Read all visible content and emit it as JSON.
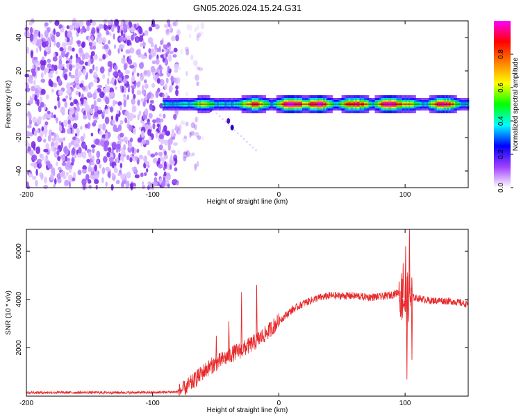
{
  "title": "GN05.2026.024.15.24.G31",
  "chart_data": [
    {
      "type": "heatmap",
      "xlabel": "Height of straight line (km)",
      "ylabel": "Frequency (Hz)",
      "xlim": [
        -200,
        150
      ],
      "ylim": [
        -50,
        50
      ],
      "xticks": [
        -200,
        -100,
        0,
        100
      ],
      "xtick_labels": [
        "-200",
        "-100",
        "0",
        "100"
      ],
      "yticks": [
        -40,
        -20,
        0,
        20,
        40
      ],
      "ytick_labels": [
        "-40",
        "-20",
        "0",
        "20",
        "40"
      ],
      "colorbar": {
        "label": "Normalized spectral amplitude",
        "range": [
          0,
          1
        ],
        "ticks": [
          0,
          0.2,
          0.4,
          0.6,
          0.8
        ],
        "tick_labels": [
          "0.0",
          "0.2",
          "0.4",
          "0.6",
          "0.8"
        ],
        "colors": [
          "#ffffff",
          "#a040ff",
          "#0000ff",
          "#00ffff",
          "#00ff00",
          "#ffff00",
          "#ff8000",
          "#ff0000",
          "#ff00ff"
        ]
      },
      "features": {
        "noise_region_x": [
          -200,
          -80
        ],
        "noise_amplitude_approx": 0.15,
        "signal_start_x": -92,
        "signal_frequency": 0,
        "signal_amplitude_peaks": [
          {
            "x": -60,
            "amp": 0.6
          },
          {
            "x": -20,
            "amp": 0.8
          },
          {
            "x": 10,
            "amp": 1.0
          },
          {
            "x": 30,
            "amp": 0.95
          },
          {
            "x": 60,
            "amp": 0.9
          },
          {
            "x": 88,
            "amp": 0.98
          },
          {
            "x": 100,
            "amp": 0.7
          },
          {
            "x": 130,
            "amp": 0.9
          }
        ]
      }
    },
    {
      "type": "line",
      "xlabel": "Height of straight line (km)",
      "ylabel": "SNR (10 * v/v)",
      "xlim": [
        -200,
        150
      ],
      "ylim": [
        0,
        6900
      ],
      "xticks": [
        -200,
        -100,
        0,
        100
      ],
      "xtick_labels": [
        "-200",
        "-100",
        "0",
        "100"
      ],
      "yticks": [
        2000,
        4000,
        6000
      ],
      "ytick_labels": [
        "2000",
        "4000",
        "6000"
      ],
      "color": "#e8282a",
      "series": [
        {
          "name": "SNR",
          "x": [
            -200,
            -150,
            -100,
            -80,
            -75,
            -70,
            -65,
            -60,
            -55,
            -50,
            -45,
            -40,
            -35,
            -30,
            -25,
            -20,
            -15,
            -10,
            -5,
            0,
            10,
            20,
            30,
            40,
            50,
            60,
            70,
            80,
            85,
            90,
            95,
            100,
            103,
            105,
            110,
            120,
            130,
            140,
            150
          ],
          "y": [
            150,
            150,
            150,
            180,
            300,
            500,
            750,
            1000,
            1200,
            1350,
            1500,
            1650,
            1800,
            1900,
            2050,
            2200,
            2400,
            2600,
            2850,
            3100,
            3550,
            3850,
            4050,
            4150,
            4150,
            4150,
            4100,
            4100,
            4150,
            4200,
            4300,
            3900,
            4100,
            4100,
            4050,
            3950,
            3950,
            3900,
            3800
          ]
        }
      ],
      "spikes": [
        {
          "x": -65,
          "y": 1100
        },
        {
          "x": -50,
          "y": 2500
        },
        {
          "x": -40,
          "y": 3100
        },
        {
          "x": -30,
          "y": 4300
        },
        {
          "x": -18,
          "y": 4600
        },
        {
          "x": 98,
          "y": 5500
        },
        {
          "x": 100,
          "y": 6200
        },
        {
          "x": 101,
          "y": 700
        },
        {
          "x": 103,
          "y": 6900
        },
        {
          "x": 105,
          "y": 1500
        }
      ]
    }
  ]
}
